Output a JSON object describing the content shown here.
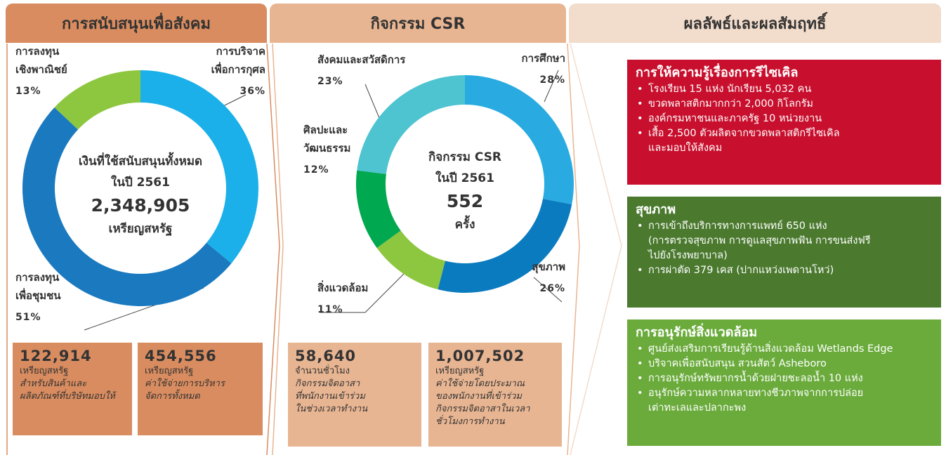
{
  "headers": [
    "การสนับสนุนเพื่อสังคม",
    "กิจกรรม CSR",
    "ผลลัพธ์และผลสัมฤทธิ์"
  ],
  "chart_data": [
    {
      "type": "donut",
      "categories": [
        [
          "การบริจาค",
          "เพื่อการกุศล"
        ],
        [
          "การลงทุน",
          "เพื่อชุมชน"
        ],
        [
          "การลงทุน",
          "เชิงพาณิชย์"
        ]
      ],
      "values": [
        36,
        51,
        13
      ],
      "value_labels": [
        "36%",
        "51%",
        "13%"
      ],
      "colors": [
        "#1bb0e9",
        "#1a79bf",
        "#8dc63f"
      ],
      "center": [
        "เงินที่ใช้สนับสนุนทั้งหมด",
        "ในปี 2561",
        "2,348,905",
        "เหรียญสหรัฐ"
      ]
    },
    {
      "type": "donut",
      "categories": [
        [
          "การศึกษา"
        ],
        [
          "สุขภาพ"
        ],
        [
          "สิ่งแวดล้อม"
        ],
        [
          "ศิลปะและ",
          "วัฒนธรรม"
        ],
        [
          "สังคมและสวัสดิการ"
        ]
      ],
      "values": [
        28,
        26,
        11,
        12,
        23
      ],
      "value_labels": [
        "28%",
        "26%",
        "11%",
        "12%",
        "23%"
      ],
      "colors": [
        "#29abe2",
        "#0b7bc0",
        "#8dc63f",
        "#00a84f",
        "#4ec4d0"
      ],
      "center": [
        "กิจกรรม CSR",
        "ในปี 2561",
        "552",
        "ครั้ง"
      ]
    }
  ],
  "stats": [
    {
      "value": "122,914",
      "unit": "เหรียญสหรัฐ",
      "notes": [
        "สำหรับสินค้าและ",
        "ผลิตภัณฑ์ที่บริษัทมอบให้"
      ]
    },
    {
      "value": "454,556",
      "unit": "เหรียญสหรัฐ",
      "notes": [
        "ค่าใช้จ่ายการบริหาร",
        "จัดการทั้งหมด"
      ]
    },
    {
      "value": "58,640",
      "unit": "จำนวนชั่วโมง",
      "notes": [
        "กิจกรรมจิตอาสา",
        "ที่พนักงานเข้าร่วม",
        "ในช่วงเวลาทำงาน"
      ]
    },
    {
      "value": "1,007,502",
      "unit": "เหรียญสหรัฐ",
      "notes": [
        "ค่าใช้จ่ายโดยประมาณ",
        "ของพนักงานที่เข้าร่วม",
        "กิจกรรมจิตอาสาในเวลา",
        "ชั่วโมงการทำงาน"
      ]
    }
  ],
  "panels": [
    {
      "title": "การให้ความรู้เรื่องการรีไซเคิล",
      "items": [
        [
          "โรงเรียน 15 แห่ง นักเรียน 5,032 คน"
        ],
        [
          "ขวดพลาสติกมากกว่า 2,000 กิโลกรัม"
        ],
        [
          "องค์กรมหาชนและภาครัฐ 10 หน่วยงาน"
        ],
        [
          "เสื้อ 2,500 ตัวผลิตจากขวดพลาสติกรีไซเคิล",
          "และมอบให้สังคม"
        ]
      ]
    },
    {
      "title": "สุขภาพ",
      "items": [
        [
          "การเข้าถึงบริการทางการแพทย์ 650 แห่ง",
          "(การตรวจสุขภาพ การดูแลสุขภาพฟัน การขนส่งฟรี",
          "ไปยังโรงพยาบาล)"
        ],
        [
          "การผ่าตัด 379 เคส (ปากแหว่งเพดานโหว่)"
        ]
      ]
    },
    {
      "title": "การอนุรักษ์สิ่งแวดล้อม",
      "items": [
        [
          "ศูนย์ส่งเสริมการเรียนรู้ด้านสิ่งแวดล้อม Wetlands Edge"
        ],
        [
          "บริจาคเพื่อสนับสนุน สวนสัตว์ Asheboro"
        ],
        [
          "การอนุรักษ์ทรัพยากรน้ำด้วยฝายชะลอน้ำ 10 แห่ง"
        ],
        [
          "อนุรักษ์ความหลากหลายทางชีวภาพจากการปล่อย",
          "เต่าทะเลและปลากะพง"
        ]
      ]
    }
  ]
}
